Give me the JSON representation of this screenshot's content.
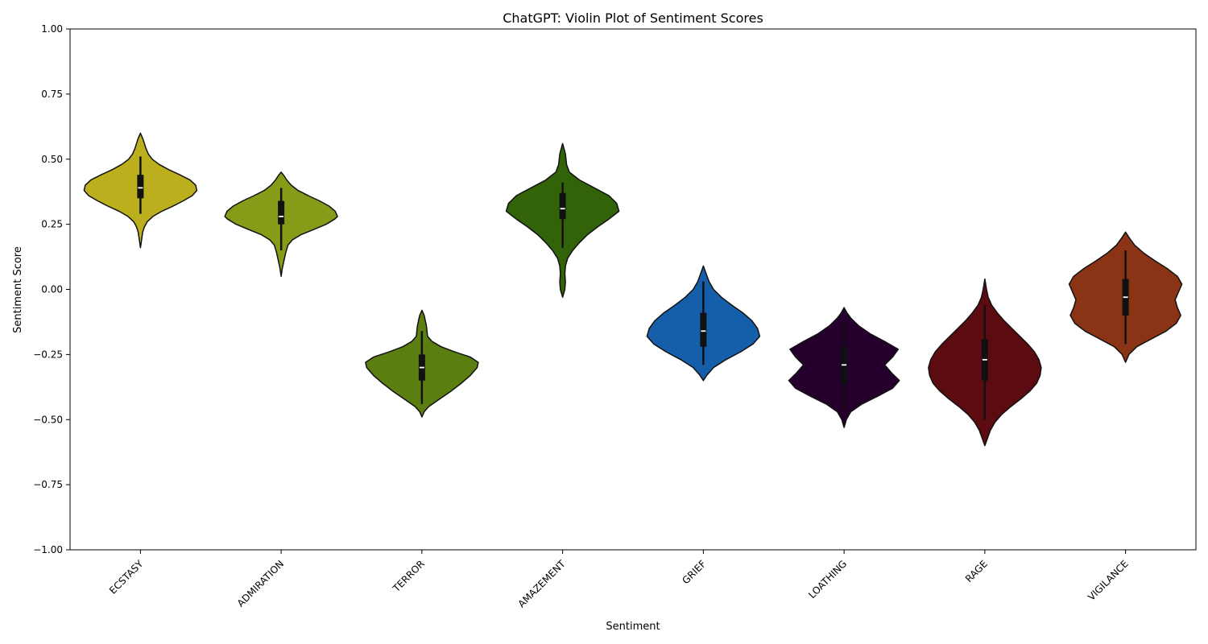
{
  "chart_data": {
    "type": "violin",
    "title": "ChatGPT: Violin Plot of Sentiment Scores",
    "xlabel": "Sentiment",
    "ylabel": "Sentiment Score",
    "ylim": [
      -1.0,
      1.0
    ],
    "yticks": [
      -1.0,
      -0.75,
      -0.5,
      -0.25,
      0.0,
      0.25,
      0.5,
      0.75,
      1.0
    ],
    "ytick_labels": [
      "−1.00",
      "−0.75",
      "−0.50",
      "−0.25",
      "0.00",
      "0.25",
      "0.50",
      "0.75",
      "1.00"
    ],
    "grid": false,
    "categories": [
      "ECSTASY",
      "ADMIRATION",
      "TERROR",
      "AMAZEMENT",
      "GRIEF",
      "LOATHING",
      "RAGE",
      "VIGILANCE"
    ],
    "violins": [
      {
        "category": "ECSTASY",
        "color": "#BCAF1E",
        "min": 0.16,
        "max": 0.6,
        "q1": 0.35,
        "median": 0.39,
        "q3": 0.44,
        "whisker_low": 0.29,
        "whisker_high": 0.51,
        "profile": [
          [
            0.16,
            0.0
          ],
          [
            0.19,
            0.02
          ],
          [
            0.22,
            0.04
          ],
          [
            0.24,
            0.07
          ],
          [
            0.26,
            0.12
          ],
          [
            0.28,
            0.22
          ],
          [
            0.3,
            0.38
          ],
          [
            0.32,
            0.58
          ],
          [
            0.34,
            0.76
          ],
          [
            0.36,
            0.92
          ],
          [
            0.38,
            1.0
          ],
          [
            0.4,
            0.98
          ],
          [
            0.42,
            0.88
          ],
          [
            0.44,
            0.7
          ],
          [
            0.46,
            0.5
          ],
          [
            0.48,
            0.33
          ],
          [
            0.5,
            0.21
          ],
          [
            0.52,
            0.14
          ],
          [
            0.54,
            0.1
          ],
          [
            0.56,
            0.07
          ],
          [
            0.58,
            0.04
          ],
          [
            0.6,
            0.0
          ]
        ]
      },
      {
        "category": "ADMIRATION",
        "color": "#889B18",
        "min": 0.05,
        "max": 0.45,
        "q1": 0.25,
        "median": 0.28,
        "q3": 0.34,
        "whisker_low": 0.15,
        "whisker_high": 0.39,
        "profile": [
          [
            0.05,
            0.0
          ],
          [
            0.08,
            0.02
          ],
          [
            0.11,
            0.05
          ],
          [
            0.14,
            0.08
          ],
          [
            0.17,
            0.12
          ],
          [
            0.19,
            0.2
          ],
          [
            0.21,
            0.35
          ],
          [
            0.23,
            0.58
          ],
          [
            0.25,
            0.8
          ],
          [
            0.27,
            0.95
          ],
          [
            0.28,
            1.0
          ],
          [
            0.3,
            0.96
          ],
          [
            0.32,
            0.85
          ],
          [
            0.34,
            0.68
          ],
          [
            0.36,
            0.48
          ],
          [
            0.38,
            0.3
          ],
          [
            0.4,
            0.18
          ],
          [
            0.42,
            0.1
          ],
          [
            0.44,
            0.04
          ],
          [
            0.45,
            0.0
          ]
        ]
      },
      {
        "category": "TERROR",
        "color": "#5A7F10",
        "min": -0.49,
        "max": -0.08,
        "q1": -0.35,
        "median": -0.3,
        "q3": -0.25,
        "whisker_low": -0.44,
        "whisker_high": -0.16,
        "profile": [
          [
            -0.49,
            0.0
          ],
          [
            -0.47,
            0.04
          ],
          [
            -0.45,
            0.12
          ],
          [
            -0.42,
            0.32
          ],
          [
            -0.39,
            0.52
          ],
          [
            -0.36,
            0.7
          ],
          [
            -0.33,
            0.86
          ],
          [
            -0.3,
            0.98
          ],
          [
            -0.28,
            1.0
          ],
          [
            -0.26,
            0.86
          ],
          [
            -0.24,
            0.58
          ],
          [
            -0.22,
            0.34
          ],
          [
            -0.2,
            0.18
          ],
          [
            -0.18,
            0.1
          ],
          [
            -0.16,
            0.09
          ],
          [
            -0.14,
            0.08
          ],
          [
            -0.12,
            0.06
          ],
          [
            -0.1,
            0.04
          ],
          [
            -0.08,
            0.0
          ]
        ]
      },
      {
        "category": "AMAZEMENT",
        "color": "#336309",
        "min": -0.03,
        "max": 0.56,
        "q1": 0.27,
        "median": 0.31,
        "q3": 0.37,
        "whisker_low": 0.16,
        "whisker_high": 0.41,
        "profile": [
          [
            -0.03,
            0.0
          ],
          [
            0.0,
            0.04
          ],
          [
            0.03,
            0.05
          ],
          [
            0.06,
            0.04
          ],
          [
            0.09,
            0.05
          ],
          [
            0.12,
            0.09
          ],
          [
            0.15,
            0.18
          ],
          [
            0.18,
            0.3
          ],
          [
            0.21,
            0.44
          ],
          [
            0.24,
            0.62
          ],
          [
            0.27,
            0.82
          ],
          [
            0.3,
            1.0
          ],
          [
            0.33,
            0.96
          ],
          [
            0.36,
            0.82
          ],
          [
            0.39,
            0.56
          ],
          [
            0.42,
            0.3
          ],
          [
            0.45,
            0.12
          ],
          [
            0.48,
            0.07
          ],
          [
            0.52,
            0.05
          ],
          [
            0.56,
            0.0
          ]
        ]
      },
      {
        "category": "GRIEF",
        "color": "#155FAA",
        "min": -0.35,
        "max": 0.09,
        "q1": -0.22,
        "median": -0.16,
        "q3": -0.09,
        "whisker_low": -0.29,
        "whisker_high": 0.03,
        "profile": [
          [
            -0.35,
            0.0
          ],
          [
            -0.33,
            0.06
          ],
          [
            -0.3,
            0.18
          ],
          [
            -0.27,
            0.4
          ],
          [
            -0.24,
            0.66
          ],
          [
            -0.21,
            0.88
          ],
          [
            -0.18,
            1.0
          ],
          [
            -0.15,
            0.96
          ],
          [
            -0.12,
            0.86
          ],
          [
            -0.09,
            0.7
          ],
          [
            -0.06,
            0.5
          ],
          [
            -0.03,
            0.32
          ],
          [
            0.0,
            0.18
          ],
          [
            0.03,
            0.1
          ],
          [
            0.06,
            0.05
          ],
          [
            0.09,
            0.0
          ]
        ]
      },
      {
        "category": "LOATHING",
        "color": "#25002C",
        "min": -0.53,
        "max": -0.07,
        "q1": -0.36,
        "median": -0.29,
        "q3": -0.22,
        "whisker_low": -0.46,
        "whisker_high": -0.13,
        "profile": [
          [
            -0.53,
            0.0
          ],
          [
            -0.5,
            0.04
          ],
          [
            -0.47,
            0.12
          ],
          [
            -0.44,
            0.32
          ],
          [
            -0.41,
            0.6
          ],
          [
            -0.38,
            0.86
          ],
          [
            -0.35,
            0.98
          ],
          [
            -0.32,
            0.84
          ],
          [
            -0.29,
            0.72
          ],
          [
            -0.26,
            0.86
          ],
          [
            -0.23,
            0.96
          ],
          [
            -0.2,
            0.72
          ],
          [
            -0.17,
            0.46
          ],
          [
            -0.14,
            0.26
          ],
          [
            -0.11,
            0.12
          ],
          [
            -0.09,
            0.05
          ],
          [
            -0.07,
            0.0
          ]
        ]
      },
      {
        "category": "RAGE",
        "color": "#5C0B10",
        "min": -0.6,
        "max": 0.04,
        "q1": -0.35,
        "median": -0.27,
        "q3": -0.19,
        "whisker_low": -0.5,
        "whisker_high": -0.06,
        "profile": [
          [
            -0.6,
            0.0
          ],
          [
            -0.57,
            0.05
          ],
          [
            -0.54,
            0.1
          ],
          [
            -0.51,
            0.18
          ],
          [
            -0.48,
            0.3
          ],
          [
            -0.45,
            0.46
          ],
          [
            -0.42,
            0.64
          ],
          [
            -0.39,
            0.8
          ],
          [
            -0.36,
            0.92
          ],
          [
            -0.33,
            0.98
          ],
          [
            -0.3,
            1.0
          ],
          [
            -0.27,
            0.96
          ],
          [
            -0.24,
            0.88
          ],
          [
            -0.21,
            0.76
          ],
          [
            -0.18,
            0.62
          ],
          [
            -0.15,
            0.48
          ],
          [
            -0.12,
            0.34
          ],
          [
            -0.09,
            0.22
          ],
          [
            -0.06,
            0.12
          ],
          [
            -0.03,
            0.06
          ],
          [
            0.0,
            0.03
          ],
          [
            0.04,
            0.0
          ]
        ]
      },
      {
        "category": "VIGILANCE",
        "color": "#8A3415",
        "min": -0.28,
        "max": 0.22,
        "q1": -0.1,
        "median": -0.03,
        "q3": 0.04,
        "whisker_low": -0.21,
        "whisker_high": 0.15,
        "profile": [
          [
            -0.28,
            0.0
          ],
          [
            -0.25,
            0.06
          ],
          [
            -0.22,
            0.2
          ],
          [
            -0.19,
            0.46
          ],
          [
            -0.16,
            0.72
          ],
          [
            -0.13,
            0.9
          ],
          [
            -0.1,
            0.98
          ],
          [
            -0.07,
            0.92
          ],
          [
            -0.04,
            0.88
          ],
          [
            -0.01,
            0.94
          ],
          [
            0.02,
            1.0
          ],
          [
            0.05,
            0.92
          ],
          [
            0.08,
            0.74
          ],
          [
            0.11,
            0.52
          ],
          [
            0.14,
            0.32
          ],
          [
            0.17,
            0.16
          ],
          [
            0.2,
            0.06
          ],
          [
            0.22,
            0.0
          ]
        ]
      }
    ]
  }
}
